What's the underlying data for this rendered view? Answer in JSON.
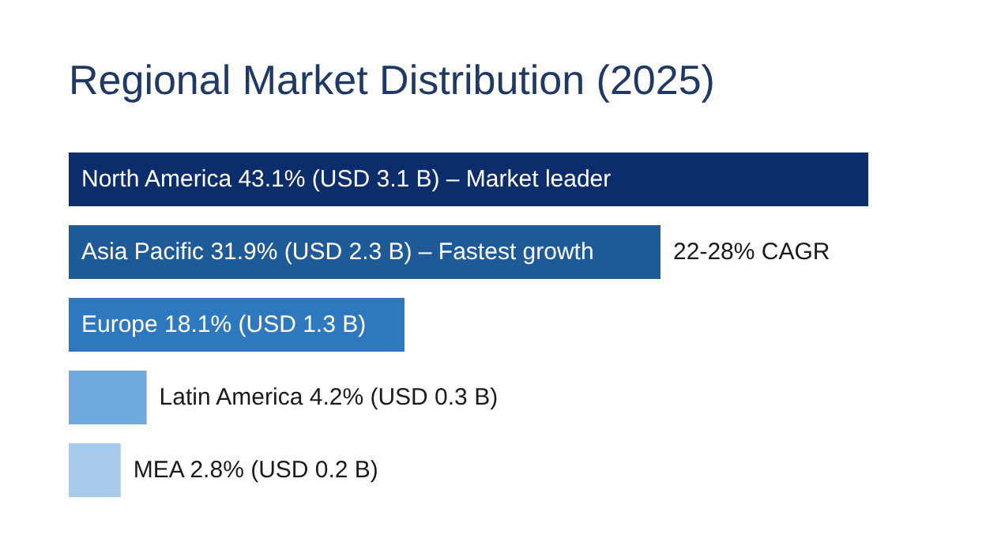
{
  "chart_data": {
    "type": "bar",
    "orientation": "horizontal",
    "title": "Regional Market Distribution (2025)",
    "categories": [
      null,
      null,
      null,
      null,
      null
    ],
    "values": [
      43.1,
      31.9,
      18.1,
      4.2,
      2.8
    ],
    "colors": [
      "#0b2d6b",
      "#1f5a98",
      "#2e78c0",
      "#6fa8dc",
      "#a9cbeb"
    ],
    "value_labels": [
      "North America 43.1% (USD 3.1 B) – Market leader",
      "Asia Pacific 31.9% (USD 2.3 B) – Fastest growth",
      "Europe 18.1% (USD 1.3 B)",
      "Latin America 4.2% (USD 0.3 B)",
      "MEA 2.8% (USD 0.2 B)"
    ],
    "annotations": [
      {
        "text": "22-28% CAGR",
        "x": 31.9
      }
    ],
    "grid": false
  }
}
